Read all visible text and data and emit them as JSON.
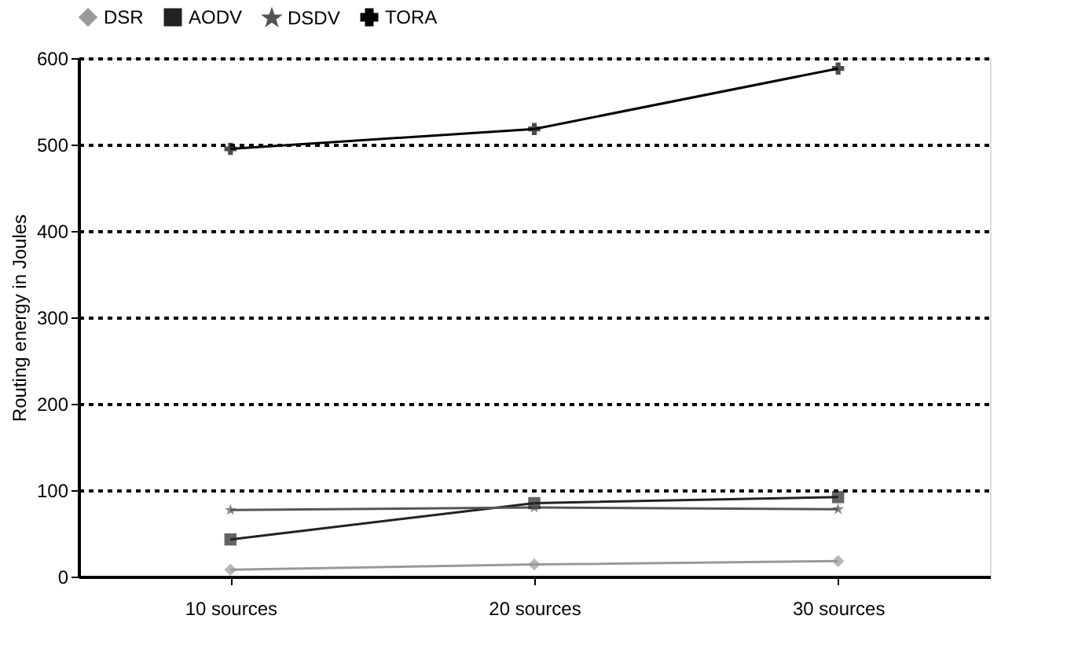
{
  "chart_data": {
    "type": "line",
    "ylabel": "Routing energy in Joules",
    "categories": [
      "10 sources",
      "20 sources",
      "30 sources"
    ],
    "series": [
      {
        "name": "DSR",
        "color": "#999999",
        "marker": "diamond",
        "values": [
          8,
          14,
          18
        ]
      },
      {
        "name": "AODV",
        "color": "#222222",
        "marker": "square",
        "values": [
          43,
          85,
          92
        ]
      },
      {
        "name": "DSDV",
        "color": "#555555",
        "marker": "star",
        "values": [
          77,
          80,
          78
        ]
      },
      {
        "name": "TORA",
        "color": "#000000",
        "marker": "cross",
        "values": [
          495,
          518,
          588
        ]
      }
    ],
    "ylim": [
      0,
      600
    ],
    "yticks": [
      0,
      100,
      200,
      300,
      400,
      500,
      600
    ],
    "grid": "y",
    "legend": "top"
  }
}
